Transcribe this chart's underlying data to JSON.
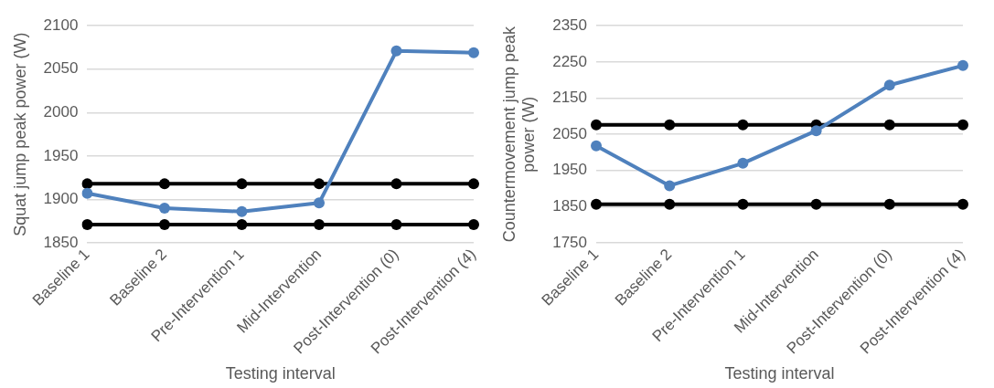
{
  "chart_data": [
    {
      "type": "line",
      "xlabel": "Testing interval",
      "ylabel": "Squat jump peak power (W)",
      "categories": [
        "Baseline 1",
        "Baseline 2",
        "Pre-Intervention 1",
        "Mid-Intervention",
        "Post-Intervention (0)",
        "Post-Intervention (4)"
      ],
      "series": [
        {
          "color": "#4f81bd",
          "values": [
            1907,
            1890,
            1886,
            1896,
            2071,
            2069
          ]
        },
        {
          "color": "#000000",
          "values": [
            1918,
            1918,
            1918,
            1918,
            1918,
            1918
          ]
        },
        {
          "color": "#000000",
          "values": [
            1871,
            1871,
            1871,
            1871,
            1871,
            1871
          ]
        }
      ],
      "ylim": [
        1850,
        2100
      ],
      "yticks": [
        1850,
        1900,
        1950,
        2000,
        2050,
        2100
      ],
      "grid": "y",
      "marker": "circle"
    },
    {
      "type": "line",
      "xlabel": "Testing interval",
      "ylabel": "Countermovement jump peak power (W)",
      "categories": [
        "Baseline 1",
        "Baseline 2",
        "Pre-Intervention 1",
        "Mid-Intervention",
        "Post-Intervention (0)",
        "Post-Intervention (4)"
      ],
      "series": [
        {
          "color": "#4f81bd",
          "values": [
            2018,
            1908,
            1970,
            2060,
            2186,
            2240
          ]
        },
        {
          "color": "#000000",
          "values": [
            2076,
            2076,
            2076,
            2076,
            2076,
            2076
          ]
        },
        {
          "color": "#000000",
          "values": [
            1857,
            1857,
            1857,
            1857,
            1857,
            1857
          ]
        }
      ],
      "ylim": [
        1750,
        2350
      ],
      "yticks": [
        1750,
        1850,
        1950,
        2050,
        2150,
        2250,
        2350
      ],
      "grid": "y",
      "marker": "circle"
    }
  ]
}
